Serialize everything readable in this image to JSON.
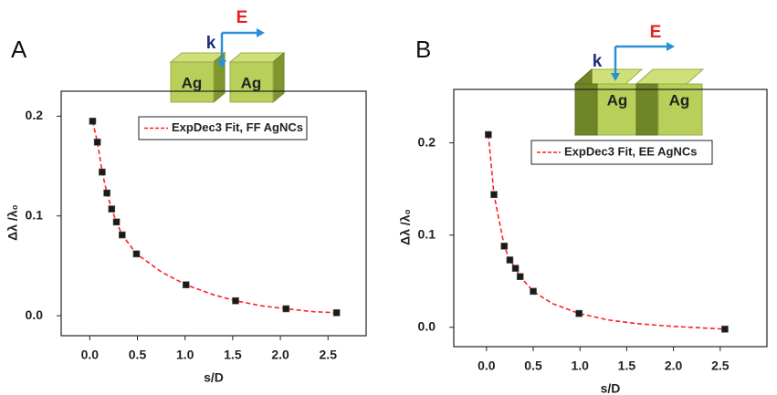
{
  "chart_data": [
    {
      "type": "scatter",
      "panel": "A",
      "annotations": {
        "k": "k",
        "E": "E",
        "cube_left": "Ag",
        "cube_right": "Ag"
      },
      "x_label": "s/D",
      "y_label": "Δλ /λ₀",
      "xlim": [
        -0.3,
        2.9
      ],
      "ylim": [
        -0.02,
        0.225
      ],
      "xticks": [
        {
          "value": 0,
          "label": "0.0"
        },
        0.5,
        {
          "value": 1,
          "label": "1.0"
        },
        1.5,
        {
          "value": 2,
          "label": "2.0"
        },
        2.5
      ],
      "yticks": [
        {
          "value": 0,
          "label": "0.0"
        },
        0.1,
        0.2
      ],
      "points": {
        "color": "#1a1a1a",
        "x": [
          0.03,
          0.08,
          0.13,
          0.18,
          0.23,
          0.28,
          0.34,
          0.49,
          1.01,
          1.53,
          2.06,
          2.59
        ],
        "y": [
          0.195,
          0.174,
          0.144,
          0.123,
          0.107,
          0.094,
          0.081,
          0.062,
          0.031,
          0.015,
          0.007,
          0.003
        ]
      },
      "series": [
        {
          "name": "ExpDec3 Fit, FF AgNCs",
          "color": "#ff2020",
          "x": [
            0.03,
            0.08,
            0.13,
            0.18,
            0.23,
            0.28,
            0.34,
            0.49,
            0.75,
            1.01,
            1.3,
            1.53,
            1.8,
            2.06,
            2.35,
            2.59
          ],
          "y": [
            0.195,
            0.174,
            0.144,
            0.123,
            0.107,
            0.094,
            0.081,
            0.062,
            0.044,
            0.031,
            0.021,
            0.015,
            0.01,
            0.007,
            0.004,
            0.003
          ]
        }
      ]
    },
    {
      "type": "scatter",
      "panel": "B",
      "annotations": {
        "k": "k",
        "E": "E",
        "cube_left": "Ag",
        "cube_right": "Ag"
      },
      "x_label": "s/D",
      "y_label": "Δλ /λ₀",
      "xlim": [
        -0.35,
        3.0
      ],
      "ylim": [
        -0.021,
        0.258
      ],
      "xticks": [
        {
          "value": 0,
          "label": "0.0"
        },
        0.5,
        {
          "value": 1,
          "label": "1.0"
        },
        1.5,
        {
          "value": 2,
          "label": "2.0"
        },
        2.5
      ],
      "yticks": [
        {
          "value": 0,
          "label": "0.0"
        },
        0.1,
        0.2
      ],
      "points": {
        "color": "#1a1a1a",
        "x": [
          0.02,
          0.08,
          0.19,
          0.25,
          0.31,
          0.36,
          0.5,
          0.99,
          2.55
        ],
        "y": [
          0.209,
          0.144,
          0.088,
          0.073,
          0.064,
          0.055,
          0.039,
          0.015,
          -0.002
        ]
      },
      "series": [
        {
          "name": "ExpDec3 Fit, EE AgNCs",
          "color": "#ff2020",
          "x": [
            0.02,
            0.08,
            0.19,
            0.25,
            0.31,
            0.36,
            0.5,
            0.7,
            0.99,
            1.3,
            1.6,
            2.0,
            2.55
          ],
          "y": [
            0.209,
            0.144,
            0.088,
            0.073,
            0.064,
            0.055,
            0.039,
            0.026,
            0.015,
            0.008,
            0.004,
            0.001,
            -0.002
          ]
        }
      ]
    }
  ]
}
